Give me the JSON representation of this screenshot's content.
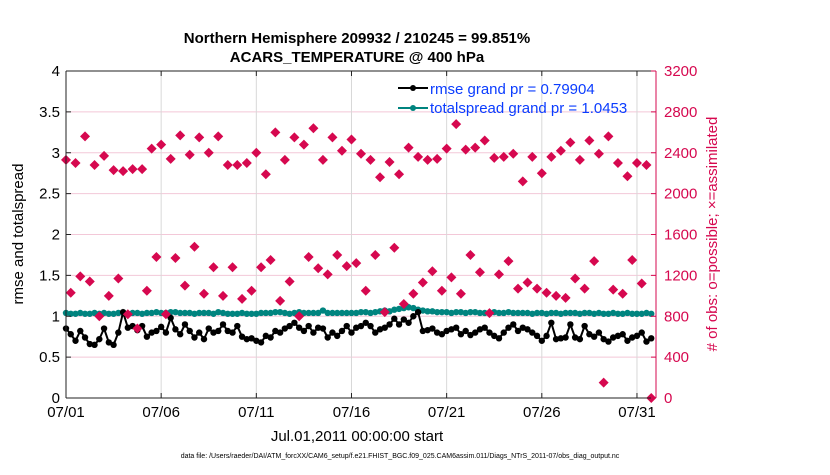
{
  "chart_data": {
    "type": "line",
    "title_line1": "Northern Hemisphere 209932 / 210245 = 99.851%",
    "title_line2": "ACARS_TEMPERATURE @ 400 hPa",
    "xlabel": "Jul.01,2011 00:00:00 start",
    "ylabel_left": "rmse and totalspread",
    "ylabel_right": "# of obs: o=possible; ×=assimilated",
    "footnote": "data file: /Users/raeder/DAI/ATM_forcXX/CAM6_setup/f.e21.FHIST_BGC.f09_025.CAM6assim.011/Diags_NTrS_2011-07/obs_diag_output.nc",
    "x_start": "07/01 00:00",
    "x_interval_hours": 6,
    "xlim": [
      "07/01",
      "08/01"
    ],
    "x_tick_labels": [
      "07/01",
      "07/06",
      "07/11",
      "07/16",
      "07/21",
      "07/26",
      "07/31"
    ],
    "ylim_left": [
      0,
      4
    ],
    "y_left_ticks": [
      "0",
      "0.5",
      "1",
      "1.5",
      "2",
      "2.5",
      "3",
      "3.5",
      "4"
    ],
    "ylim_right": [
      0,
      3200
    ],
    "y_right_ticks": [
      "0",
      "400",
      "800",
      "1200",
      "1600",
      "2000",
      "2400",
      "2800",
      "3200"
    ],
    "grid": true,
    "legend_placement": "top-right",
    "colors": {
      "rmse": "#000000",
      "totalspread": "#00847f",
      "obs": "#d6084f",
      "legend_text": "#0a3cff",
      "right_axis": "#d6084f",
      "vgrid": "#d8d8d8",
      "hgrid": "#f3c8d8"
    },
    "series": [
      {
        "name": "rmse grand pr = 0.79904",
        "axis": "left",
        "values": [
          0.85,
          0.78,
          0.7,
          0.82,
          0.74,
          0.66,
          0.65,
          0.72,
          0.85,
          0.68,
          0.65,
          0.8,
          1.05,
          0.86,
          0.88,
          0.83,
          0.88,
          0.75,
          0.8,
          0.82,
          0.87,
          0.8,
          0.98,
          0.84,
          0.78,
          0.9,
          0.82,
          0.74,
          0.8,
          0.72,
          0.85,
          0.8,
          0.82,
          0.9,
          0.82,
          0.8,
          0.88,
          0.75,
          0.72,
          0.73,
          0.7,
          0.68,
          0.76,
          0.74,
          0.82,
          0.8,
          0.85,
          0.88,
          0.92,
          0.86,
          0.82,
          0.88,
          0.8,
          0.86,
          0.85,
          0.74,
          0.8,
          0.76,
          0.82,
          0.88,
          0.8,
          0.86,
          0.88,
          0.92,
          0.88,
          0.8,
          0.84,
          0.86,
          0.9,
          0.97,
          0.9,
          0.96,
          0.92,
          1.0,
          1.05,
          0.82,
          0.83,
          0.85,
          0.8,
          0.78,
          0.82,
          0.84,
          0.86,
          0.78,
          0.82,
          0.77,
          0.8,
          0.84,
          0.86,
          0.8,
          0.76,
          0.73,
          0.8,
          0.86,
          0.9,
          0.82,
          0.86,
          0.84,
          0.8,
          0.76,
          0.7,
          0.76,
          0.92,
          0.72,
          0.73,
          0.74,
          0.9,
          0.74,
          0.72,
          0.88,
          0.78,
          0.75,
          0.8,
          0.72,
          0.69,
          0.74,
          0.76,
          0.78,
          0.7,
          0.74,
          0.76,
          0.8,
          0.69,
          0.73
        ]
      },
      {
        "name": "totalspread grand pr = 1.0453",
        "axis": "left",
        "values": [
          1.04,
          1.03,
          1.03,
          1.04,
          1.03,
          1.03,
          1.04,
          1.03,
          1.04,
          1.03,
          1.03,
          1.04,
          1.04,
          1.03,
          1.04,
          1.04,
          1.03,
          1.04,
          1.04,
          1.05,
          1.04,
          1.04,
          1.05,
          1.05,
          1.04,
          1.04,
          1.04,
          1.03,
          1.04,
          1.04,
          1.04,
          1.03,
          1.05,
          1.04,
          1.03,
          1.03,
          1.03,
          1.04,
          1.03,
          1.03,
          1.03,
          1.04,
          1.04,
          1.04,
          1.05,
          1.05,
          1.04,
          1.03,
          1.04,
          1.05,
          1.04,
          1.04,
          1.04,
          1.04,
          1.07,
          1.04,
          1.04,
          1.04,
          1.04,
          1.04,
          1.04,
          1.04,
          1.05,
          1.05,
          1.04,
          1.05,
          1.06,
          1.07,
          1.06,
          1.08,
          1.09,
          1.1,
          1.11,
          1.1,
          1.08,
          1.07,
          1.06,
          1.06,
          1.05,
          1.05,
          1.05,
          1.04,
          1.05,
          1.05,
          1.04,
          1.05,
          1.05,
          1.04,
          1.04,
          1.04,
          1.05,
          1.04,
          1.04,
          1.05,
          1.04,
          1.04,
          1.04,
          1.04,
          1.03,
          1.04,
          1.04,
          1.03,
          1.04,
          1.04,
          1.03,
          1.04,
          1.04,
          1.04,
          1.03,
          1.04,
          1.04,
          1.03,
          1.04,
          1.03,
          1.03,
          1.04,
          1.03,
          1.03,
          1.04,
          1.03,
          1.03,
          1.03,
          1.04,
          1.03
        ]
      },
      {
        "name": "obs count",
        "axis": "right",
        "values": [
          2330,
          1030,
          2300,
          1190,
          2560,
          1140,
          2280,
          800,
          2370,
          1000,
          2230,
          1170,
          2220,
          820,
          2240,
          680,
          2240,
          1050,
          2440,
          1380,
          2480,
          820,
          2340,
          1370,
          2570,
          1100,
          2380,
          1480,
          2550,
          1020,
          2400,
          1280,
          2560,
          1000,
          2280,
          1280,
          2280,
          970,
          2300,
          1050,
          2400,
          1280,
          2190,
          1350,
          2600,
          950,
          2330,
          1140,
          2550,
          800,
          2480,
          1380,
          2640,
          1270,
          2330,
          1210,
          2550,
          1400,
          2420,
          1290,
          2530,
          1320,
          2390,
          1050,
          2330,
          1400,
          2160,
          840,
          2310,
          1470,
          2190,
          920,
          2450,
          1020,
          2360,
          1130,
          2330,
          1240,
          2340,
          1050,
          2440,
          1180,
          2680,
          1020,
          2430,
          1400,
          2450,
          1230,
          2520,
          830,
          2350,
          1210,
          2360,
          1340,
          2390,
          1070,
          2120,
          1130,
          2360,
          1070,
          2200,
          1030,
          2360,
          1000,
          2420,
          980,
          2500,
          1170,
          2330,
          1070,
          2520,
          1340,
          2390,
          150,
          2560,
          1060,
          2300,
          1020,
          2170,
          1350,
          2300,
          1120,
          2280,
          0
        ]
      }
    ]
  }
}
